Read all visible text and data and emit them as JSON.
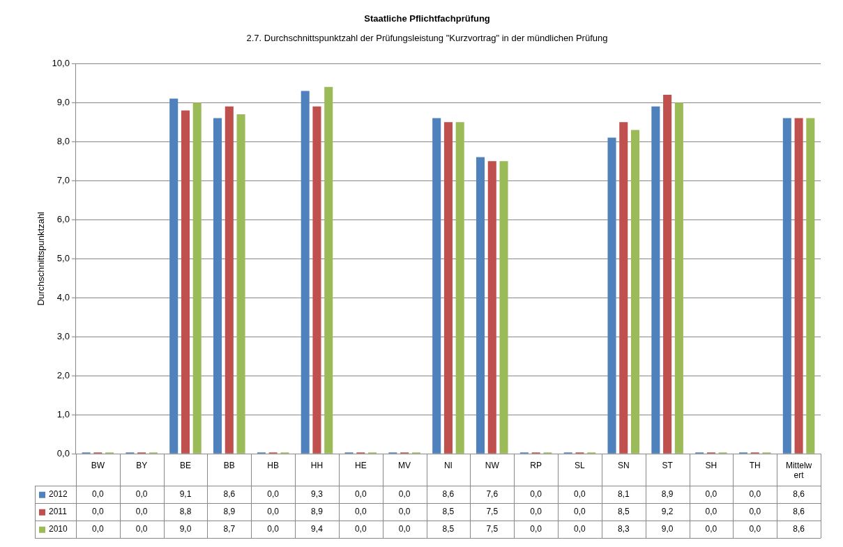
{
  "chart_data": {
    "type": "bar",
    "title": "Staatliche Pflichtfachprüfung",
    "subtitle": "2.7. Durchschnittspunktzahl der Prüfungsleistung \"Kurzvortrag\" in der mündlichen Prüfung",
    "ylabel": "Durchschnittspunktzahl",
    "categories": [
      "BW",
      "BY",
      "BE",
      "BB",
      "HB",
      "HH",
      "HE",
      "MV",
      "NI",
      "NW",
      "RP",
      "SL",
      "SN",
      "ST",
      "SH",
      "TH",
      "Mittelwert"
    ],
    "series": [
      {
        "name": "2012",
        "color": "#4f81bd",
        "values": [
          0.0,
          0.0,
          9.1,
          8.6,
          0.0,
          9.3,
          0.0,
          0.0,
          8.6,
          7.6,
          0.0,
          0.0,
          8.1,
          8.9,
          0.0,
          0.0,
          8.6
        ],
        "value_labels": [
          "0,0",
          "0,0",
          "9,1",
          "8,6",
          "0,0",
          "9,3",
          "0,0",
          "0,0",
          "8,6",
          "7,6",
          "0,0",
          "0,0",
          "8,1",
          "8,9",
          "0,0",
          "0,0",
          "8,6"
        ]
      },
      {
        "name": "2011",
        "color": "#c0504d",
        "values": [
          0.0,
          0.0,
          8.8,
          8.9,
          0.0,
          8.9,
          0.0,
          0.0,
          8.5,
          7.5,
          0.0,
          0.0,
          8.5,
          9.2,
          0.0,
          0.0,
          8.6
        ],
        "value_labels": [
          "0,0",
          "0,0",
          "8,8",
          "8,9",
          "0,0",
          "8,9",
          "0,0",
          "0,0",
          "8,5",
          "7,5",
          "0,0",
          "0,0",
          "8,5",
          "9,2",
          "0,0",
          "0,0",
          "8,6"
        ]
      },
      {
        "name": "2010",
        "color": "#9bbb59",
        "values": [
          0.0,
          0.0,
          9.0,
          8.7,
          0.0,
          9.4,
          0.0,
          0.0,
          8.5,
          7.5,
          0.0,
          0.0,
          8.3,
          9.0,
          0.0,
          0.0,
          8.6
        ],
        "value_labels": [
          "0,0",
          "0,0",
          "9,0",
          "8,7",
          "0,0",
          "9,4",
          "0,0",
          "0,0",
          "8,5",
          "7,5",
          "0,0",
          "0,0",
          "8,3",
          "9,0",
          "0,0",
          "0,0",
          "8,6"
        ]
      }
    ],
    "ylim": [
      0,
      10
    ],
    "yticks": [
      {
        "value": 0,
        "label": "0,0"
      },
      {
        "value": 1,
        "label": "1,0"
      },
      {
        "value": 2,
        "label": "2,0"
      },
      {
        "value": 3,
        "label": "3,0"
      },
      {
        "value": 4,
        "label": "4,0"
      },
      {
        "value": 5,
        "label": "5,0"
      },
      {
        "value": 6,
        "label": "6,0"
      },
      {
        "value": 7,
        "label": "7,0"
      },
      {
        "value": 8,
        "label": "8,0"
      },
      {
        "value": 9,
        "label": "9,0"
      },
      {
        "value": 10,
        "label": "10,0"
      }
    ],
    "grid": "y",
    "legend": "bottom"
  }
}
